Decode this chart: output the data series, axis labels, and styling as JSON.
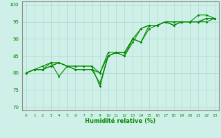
{
  "xlabel": "Humidité relative (%)",
  "xlim": [
    -0.5,
    23.5
  ],
  "ylim": [
    69,
    101
  ],
  "yticks": [
    70,
    75,
    80,
    85,
    90,
    95,
    100
  ],
  "xticks": [
    0,
    1,
    2,
    3,
    4,
    5,
    6,
    7,
    8,
    9,
    10,
    11,
    12,
    13,
    14,
    15,
    16,
    17,
    18,
    19,
    20,
    21,
    22,
    23
  ],
  "background_color": "#cff0e8",
  "grid_color": "#b0d8cc",
  "line_color": "#008800",
  "lines": [
    [
      80,
      81,
      81,
      82,
      83,
      82,
      81,
      81,
      81,
      77,
      85,
      86,
      85,
      89,
      93,
      94,
      94,
      95,
      94,
      95,
      95,
      97,
      97,
      96
    ],
    [
      80,
      81,
      81,
      82,
      83,
      82,
      81,
      81,
      81,
      80,
      86,
      86,
      85,
      90,
      93,
      94,
      94,
      95,
      94,
      95,
      95,
      95,
      96,
      96
    ],
    [
      80,
      81,
      81,
      83,
      83,
      82,
      82,
      82,
      82,
      80,
      85,
      86,
      86,
      90,
      89,
      94,
      94,
      95,
      95,
      95,
      95,
      95,
      96,
      96
    ],
    [
      80,
      81,
      82,
      83,
      79,
      82,
      82,
      82,
      82,
      76,
      85,
      86,
      86,
      90,
      89,
      93,
      94,
      95,
      95,
      95,
      95,
      95,
      95,
      96
    ]
  ]
}
